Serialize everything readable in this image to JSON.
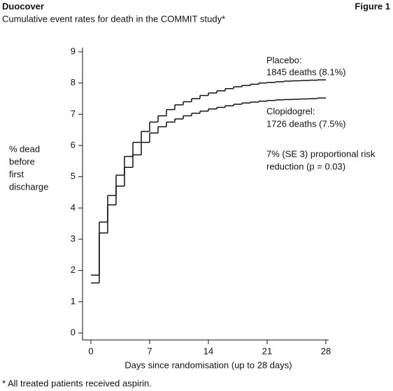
{
  "header": {
    "title": "Duocover",
    "figure": "Figure 1"
  },
  "chart_data": {
    "type": "step",
    "title": "Cumulative event rates for death in the COMMIT study*",
    "ylabel": [
      "% dead",
      "before",
      "first",
      "discharge"
    ],
    "xlabel": "Days since randomisation (up to 28 days)",
    "x": [
      0,
      1,
      2,
      3,
      4,
      5,
      6,
      7,
      8,
      9,
      10,
      11,
      12,
      13,
      14,
      15,
      16,
      17,
      18,
      19,
      20,
      21,
      22,
      23,
      24,
      25,
      26,
      27
    ],
    "series": [
      {
        "name": "Placebo",
        "color": "#111111",
        "values": [
          1.85,
          3.55,
          4.4,
          5.05,
          5.65,
          6.1,
          6.45,
          6.75,
          6.95,
          7.15,
          7.3,
          7.4,
          7.5,
          7.6,
          7.68,
          7.75,
          7.82,
          7.88,
          7.92,
          7.96,
          8.0,
          8.02,
          8.04,
          8.06,
          8.07,
          8.08,
          8.09,
          8.1
        ]
      },
      {
        "name": "Clopidogrel",
        "color": "#111111",
        "values": [
          1.6,
          3.2,
          4.1,
          4.7,
          5.3,
          5.7,
          6.1,
          6.4,
          6.6,
          6.75,
          6.85,
          6.95,
          7.03,
          7.1,
          7.17,
          7.22,
          7.27,
          7.32,
          7.36,
          7.39,
          7.42,
          7.44,
          7.46,
          7.47,
          7.48,
          7.49,
          7.5,
          7.52
        ]
      }
    ],
    "xlim": [
      0,
      28
    ],
    "xticks": [
      0,
      7,
      14,
      21,
      28
    ],
    "ylim": [
      0,
      9
    ],
    "yticks": [
      0,
      1,
      2,
      3,
      4,
      5,
      6,
      7,
      8,
      9
    ],
    "annotations": [
      "Placebo:",
      "1845 deaths (8.1%)",
      "Clopidogrel:",
      "1726 deaths (7.5%)",
      "7% (SE 3) proportional risk",
      "reduction (p = 0.03)"
    ]
  },
  "footnote": "* All treated patients received aspirin."
}
